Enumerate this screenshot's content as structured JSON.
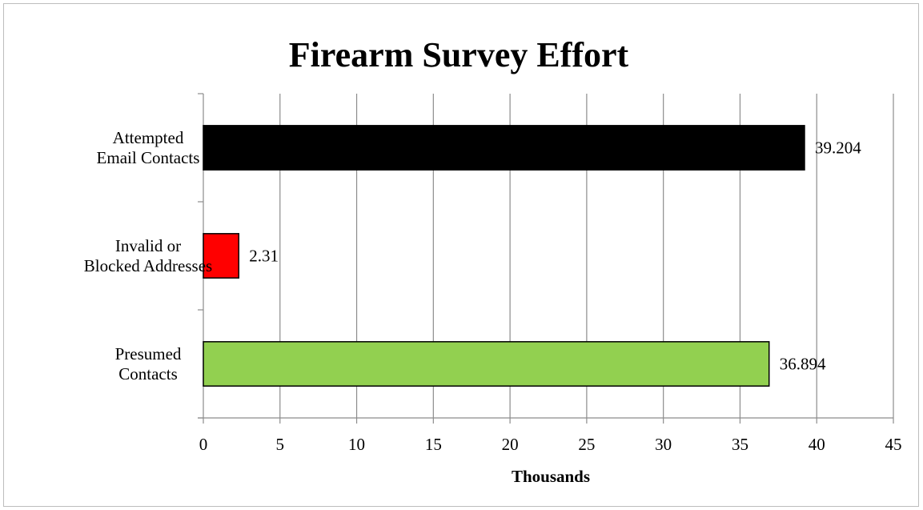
{
  "chart_data": {
    "type": "bar",
    "orientation": "horizontal",
    "title": "Firearm Survey Effort",
    "xlabel": "Thousands",
    "ylabel": "",
    "xlim": [
      0,
      45
    ],
    "x_ticks": [
      0,
      5,
      10,
      15,
      20,
      25,
      30,
      35,
      40,
      45
    ],
    "grid": "vertical",
    "legend": "none",
    "categories": [
      [
        "Attempted",
        "Email Contacts"
      ],
      [
        "Invalid or",
        "Blocked Addresses"
      ],
      [
        "Presumed",
        "Contacts"
      ]
    ],
    "values": [
      39.204,
      2.31,
      36.894
    ],
    "data_labels": [
      "39.204",
      "2.31",
      "36.894"
    ],
    "colors": [
      "#000000",
      "#ff0000",
      "#92d050"
    ]
  }
}
